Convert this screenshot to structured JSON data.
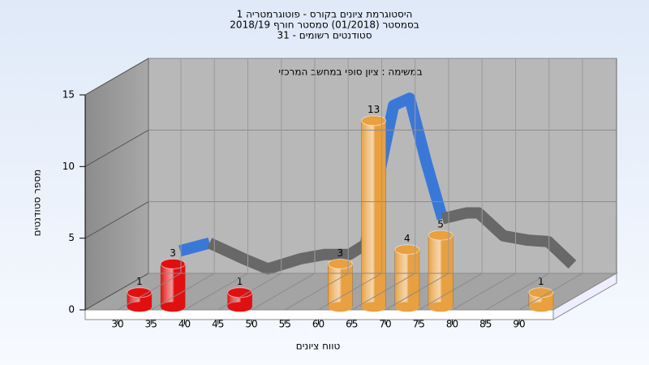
{
  "chart_data": {
    "type": "bar3d",
    "title": [
      "היסטוגרמת ציונים בקורס - פוטוגרמטריה 1",
      "בסמסטר  (01/2018)  סמסטר חורף 2018/19",
      "סטודנטים רשומים - 31"
    ],
    "subtitle": "במשימה : ציון סופי במחשב המרכזי",
    "x_label": "טווח ציונים",
    "y_label": "מספר סטודנטים",
    "categories": [
      "30",
      "35",
      "40",
      "45",
      "50",
      "55",
      "60",
      "65",
      "70",
      "75",
      "80",
      "85",
      "90"
    ],
    "values": [
      1,
      3,
      0,
      1,
      0,
      0,
      3,
      13,
      4,
      5,
      0,
      0,
      1
    ],
    "colors": [
      "#e01010",
      "#e01010",
      "#e01010",
      "#e01010",
      "#e01010",
      "#e8a040",
      "#e8a040",
      "#e8a040",
      "#e8a040",
      "#e8a040",
      "#e8a040",
      "#e8a040",
      "#e8a040"
    ],
    "ylim": [
      0,
      15
    ],
    "yticks": [
      0,
      5,
      10,
      15
    ],
    "curve": {
      "x": [
        36.5,
        40.9,
        46,
        49.6,
        54.5,
        58.1,
        61.8,
        64.2,
        66.6,
        68.4,
        70.8,
        73.3,
        75.7,
        79.3,
        81.1,
        84.8,
        88.4,
        91.5,
        95.1
      ],
      "series": [
        {
          "color": "#3a78d8",
          "values": [
            3.35,
            3.9,
            null,
            null,
            null,
            null,
            null,
            3.8,
            9.5,
            13.5,
            14,
            9.5,
            5.6,
            null,
            null,
            null,
            null,
            null,
            null
          ]
        },
        {
          "color": "#686868",
          "values": [
            null,
            3.9,
            2.8,
            2.1,
            2.8,
            3.1,
            3.1,
            3.8,
            null,
            null,
            null,
            null,
            5.6,
            6,
            6,
            4.4,
            4.1,
            4,
            2.4
          ]
        }
      ]
    }
  }
}
